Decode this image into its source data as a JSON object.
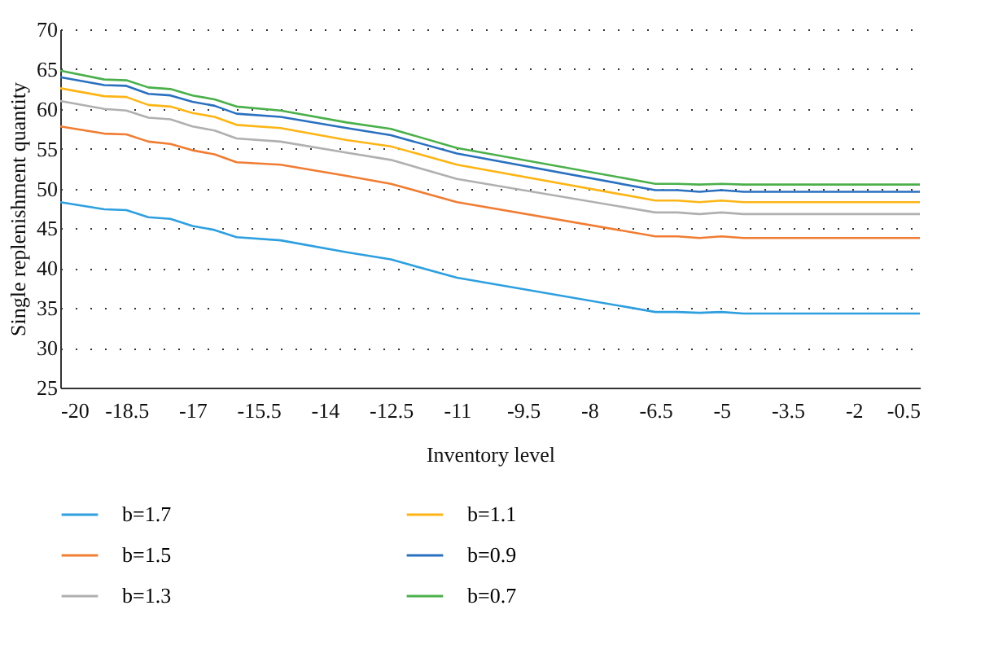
{
  "chart_data": {
    "type": "line",
    "xlabel": "Inventory level",
    "ylabel": "Single replenishment quantity",
    "x": [
      -20,
      -19,
      -18.5,
      -18,
      -17.5,
      -17,
      -16.5,
      -16,
      -15,
      -13.5,
      -12.5,
      -11,
      -6.5,
      -6,
      -5.5,
      -5,
      -4.5,
      -0.5
    ],
    "series": [
      {
        "name": "b=1.7",
        "color": "#2e9fdf",
        "values": [
          48.3,
          47.4,
          47.3,
          46.4,
          46.2,
          45.3,
          44.8,
          43.9,
          43.5,
          42.0,
          41.1,
          38.8,
          34.5,
          34.5,
          34.4,
          34.5,
          34.3,
          34.3
        ]
      },
      {
        "name": "b=1.5",
        "color": "#f07d33",
        "values": [
          57.8,
          56.9,
          56.8,
          55.9,
          55.6,
          54.8,
          54.3,
          53.3,
          53.0,
          51.6,
          50.6,
          48.3,
          44.0,
          44.0,
          43.8,
          44.0,
          43.8,
          43.8
        ]
      },
      {
        "name": "b=1.3",
        "color": "#b0b0b0",
        "values": [
          61.0,
          60.0,
          59.8,
          58.9,
          58.7,
          57.8,
          57.3,
          56.3,
          55.9,
          54.5,
          53.6,
          51.2,
          47.0,
          47.0,
          46.8,
          47.0,
          46.8,
          46.8
        ]
      },
      {
        "name": "b=1.1",
        "color": "#fdb515",
        "values": [
          62.6,
          61.6,
          61.5,
          60.5,
          60.3,
          59.5,
          59.0,
          58.0,
          57.6,
          56.1,
          55.3,
          53.0,
          48.5,
          48.5,
          48.3,
          48.5,
          48.3,
          48.3
        ]
      },
      {
        "name": "b=0.9",
        "color": "#2a70c0",
        "values": [
          64.0,
          63.0,
          62.9,
          61.9,
          61.7,
          60.9,
          60.4,
          59.4,
          59.0,
          57.6,
          56.7,
          54.4,
          49.8,
          49.8,
          49.6,
          49.8,
          49.6,
          49.6
        ]
      },
      {
        "name": "b=0.7",
        "color": "#4bb04b",
        "values": [
          64.8,
          63.7,
          63.6,
          62.7,
          62.5,
          61.7,
          61.2,
          60.3,
          59.8,
          58.3,
          57.5,
          55.1,
          50.6,
          50.6,
          50.5,
          50.6,
          50.5,
          50.5
        ]
      }
    ],
    "xlim": [
      -20,
      -0.5
    ],
    "xticks": [
      -20,
      -18.5,
      -17,
      -15.5,
      -14,
      -12.5,
      -11,
      -9.5,
      -8,
      -6.5,
      -5,
      -3.5,
      -2,
      -0.5
    ],
    "ylim": [
      25,
      70
    ],
    "yticks": [
      25,
      30,
      35,
      40,
      45,
      50,
      55,
      60,
      65,
      70
    ],
    "grid": "y",
    "legend": "bottom",
    "marker": "none",
    "line_style": "solid"
  }
}
